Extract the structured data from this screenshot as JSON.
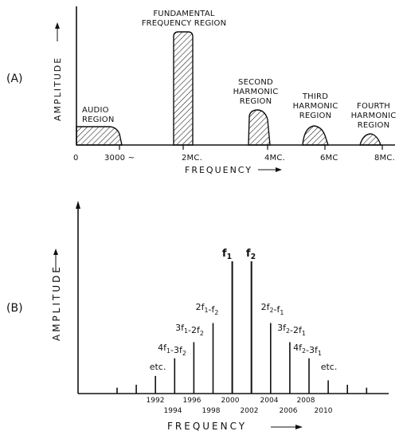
{
  "panel_a": {
    "panel_label": "(A)",
    "y_axis_label": "AMPLITUDE",
    "x_axis_label": "FREQUENCY",
    "tick_labels": [
      "0",
      "3000 ~",
      "2MC.",
      "4MC.",
      "6MC",
      "8MC."
    ],
    "regions": {
      "audio": [
        "AUDIO",
        "REGION"
      ],
      "fundamental": [
        "FUNDAMENTAL",
        "FREQUENCY REGION"
      ],
      "second": [
        "SECOND",
        "HARMONIC",
        "REGION"
      ],
      "third": [
        "THIRD",
        "HARMONIC",
        "REGION"
      ],
      "fourth": [
        "FOURTH",
        "HARMONIC",
        "REGION"
      ]
    }
  },
  "panel_b": {
    "panel_label": "(B)",
    "y_axis_label": "AMPLITUDE",
    "x_axis_label": "FREQUENCY",
    "fundamental_labels": [
      "f1",
      "f2"
    ],
    "intermod_labels": [
      "2f1-f2",
      "3f1-2f2",
      "4f1-3f2",
      "etc.",
      "2f2-f1",
      "3f2-2f1",
      "4f2-3f1",
      "etc."
    ],
    "tick_labels": [
      "1992",
      "1994",
      "1996",
      "1998",
      "2000",
      "2002",
      "2004",
      "2006",
      "2008",
      "2010"
    ]
  },
  "chart_data": [
    {
      "type": "area",
      "title": "",
      "xlabel": "FREQUENCY",
      "ylabel": "AMPLITUDE",
      "categories": [
        "AUDIO REGION",
        "FUNDAMENTAL FREQUENCY REGION",
        "SECOND HARMONIC REGION",
        "THIRD HARMONIC REGION",
        "FOURTH HARMONIC REGION"
      ],
      "relative_amplitude": [
        0.17,
        1.0,
        0.3,
        0.17,
        0.09
      ],
      "x_ticks": [
        "0",
        "3000 ~",
        "2MC.",
        "4MC.",
        "6MC",
        "8MC."
      ]
    },
    {
      "type": "bar",
      "title": "",
      "xlabel": "FREQUENCY",
      "ylabel": "AMPLITUDE",
      "x": [
        1988,
        1990,
        1992,
        1994,
        1996,
        1998,
        2000,
        2002,
        2004,
        2006,
        2008,
        2010,
        2012,
        2014
      ],
      "relative_amplitude": [
        0.04,
        0.06,
        0.12,
        0.24,
        0.35,
        0.48,
        0.9,
        0.9,
        0.48,
        0.35,
        0.24,
        0.09,
        0.06,
        0.04
      ],
      "x_ticks": [
        "1992",
        "1994",
        "1996",
        "1998",
        "2000",
        "2002",
        "2004",
        "2006",
        "2008",
        "2010"
      ]
    }
  ]
}
